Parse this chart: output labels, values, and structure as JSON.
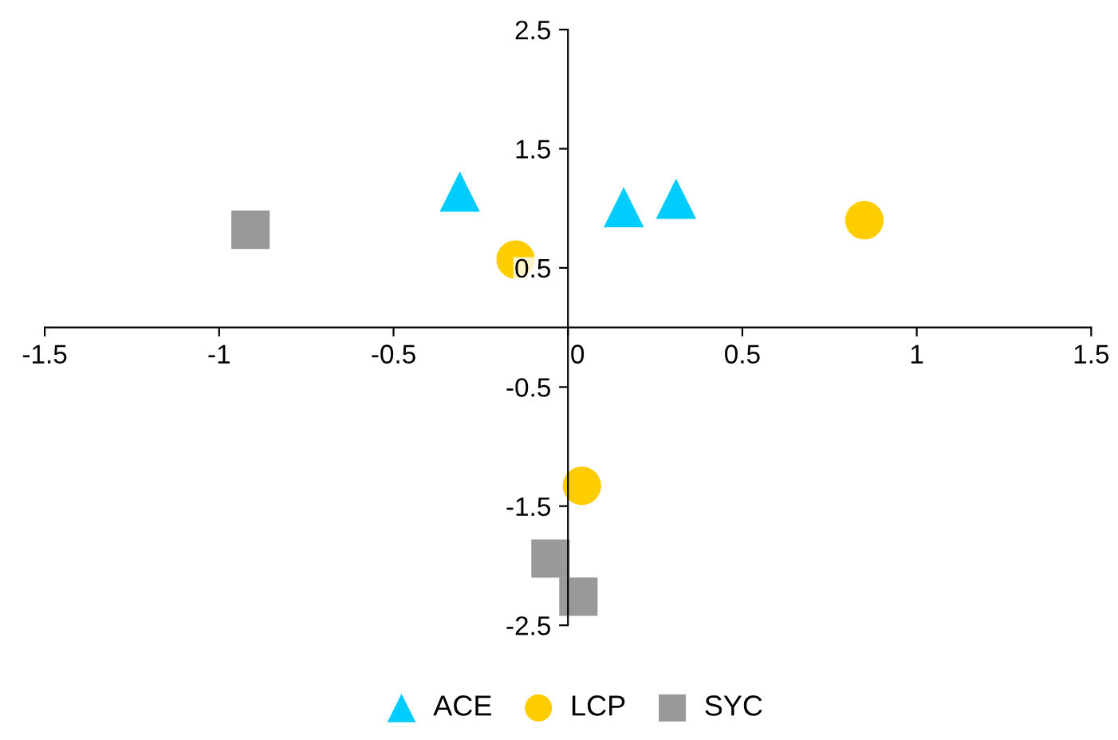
{
  "chart_data": {
    "type": "scatter",
    "xlim": [
      -1.5,
      1.5
    ],
    "xticks": [
      -1.5,
      -1,
      -0.5,
      0,
      0.5,
      1,
      1.5
    ],
    "ylim": [
      -2.5,
      2.5
    ],
    "yticks": [
      -2.5,
      -1.5,
      -0.5,
      0.5,
      1.5,
      2.5
    ],
    "grid": false,
    "legend": "bottom",
    "series": [
      {
        "name": "ACE",
        "color": "#00ccff",
        "marker": "triangle",
        "x": [
          -0.31,
          0.16,
          0.31
        ],
        "values": [
          1.14,
          1.01,
          1.08
        ]
      },
      {
        "name": "LCP",
        "color": "#ffcc00",
        "marker": "circle",
        "x": [
          0.85,
          -0.15,
          0.04
        ],
        "values": [
          0.9,
          0.57,
          -1.33
        ]
      },
      {
        "name": "SYC",
        "color": "#999999",
        "marker": "square",
        "x": [
          -0.91,
          -0.05,
          0.03
        ],
        "values": [
          0.82,
          -1.94,
          -2.26
        ]
      }
    ]
  }
}
